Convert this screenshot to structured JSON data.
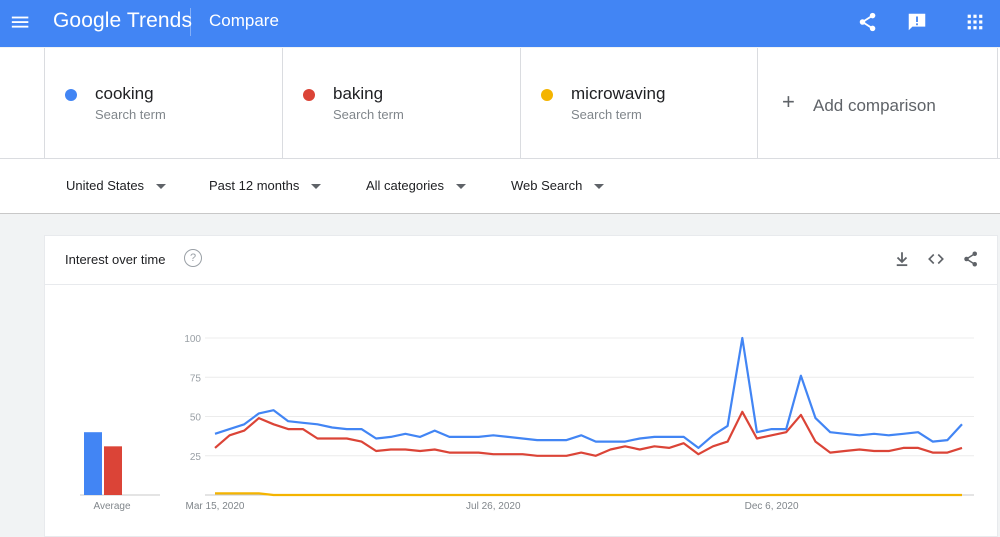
{
  "header": {
    "logo": "Google Trends",
    "page_title": "Compare",
    "icons": [
      "menu-icon",
      "share-icon",
      "feedback-icon",
      "apps-icon"
    ]
  },
  "terms": [
    {
      "name": "cooking",
      "sub": "Search term",
      "color": "#4285f4"
    },
    {
      "name": "baking",
      "sub": "Search term",
      "color": "#db4437"
    },
    {
      "name": "microwaving",
      "sub": "Search term",
      "color": "#f4b400"
    }
  ],
  "add_comparison": {
    "plus": "+",
    "label": "Add comparison"
  },
  "filters": {
    "region": "United States",
    "time": "Past 12 months",
    "category": "All categories",
    "search_type": "Web Search"
  },
  "card": {
    "title": "Interest over time",
    "help": "?",
    "icons": [
      "download-icon",
      "embed-icon",
      "share-icon"
    ]
  },
  "chart_data": {
    "type": "line",
    "ylim": [
      0,
      100
    ],
    "y_ticks": [
      25,
      50,
      75,
      100
    ],
    "x_tick_labels": [
      "Mar 15, 2020",
      "Jul 26, 2020",
      "Dec 6, 2020"
    ],
    "x_tick_index": [
      0,
      19,
      38
    ],
    "grid": true,
    "series": [
      {
        "name": "cooking",
        "color": "#4285f4",
        "values": [
          39,
          42,
          45,
          52,
          54,
          47,
          46,
          45,
          43,
          42,
          42,
          36,
          37,
          39,
          37,
          41,
          37,
          37,
          37,
          38,
          37,
          36,
          35,
          35,
          35,
          38,
          34,
          34,
          34,
          36,
          37,
          37,
          37,
          30,
          38,
          44,
          100,
          40,
          42,
          42,
          76,
          49,
          40,
          39,
          38,
          39,
          38,
          39,
          40,
          34,
          35,
          45
        ]
      },
      {
        "name": "baking",
        "color": "#db4437",
        "values": [
          30,
          38,
          41,
          49,
          45,
          42,
          42,
          36,
          36,
          36,
          34,
          28,
          29,
          29,
          28,
          29,
          27,
          27,
          27,
          26,
          26,
          26,
          25,
          25,
          25,
          27,
          25,
          29,
          31,
          29,
          31,
          30,
          33,
          26,
          31,
          34,
          53,
          36,
          38,
          40,
          51,
          34,
          27,
          28,
          29,
          28,
          28,
          30,
          30,
          27,
          27,
          30
        ]
      },
      {
        "name": "microwaving",
        "color": "#f4b400",
        "values": [
          1,
          1,
          1,
          1,
          0,
          0,
          0,
          0,
          0,
          0,
          0,
          0,
          0,
          0,
          0,
          0,
          0,
          0,
          0,
          0,
          0,
          0,
          0,
          0,
          0,
          0,
          0,
          0,
          0,
          0,
          0,
          0,
          0,
          0,
          0,
          0,
          0,
          0,
          0,
          0,
          0,
          0,
          0,
          0,
          0,
          0,
          0,
          0,
          0,
          0,
          0,
          0
        ]
      }
    ],
    "average": {
      "label": "Average",
      "values": [
        40,
        31
      ]
    }
  }
}
